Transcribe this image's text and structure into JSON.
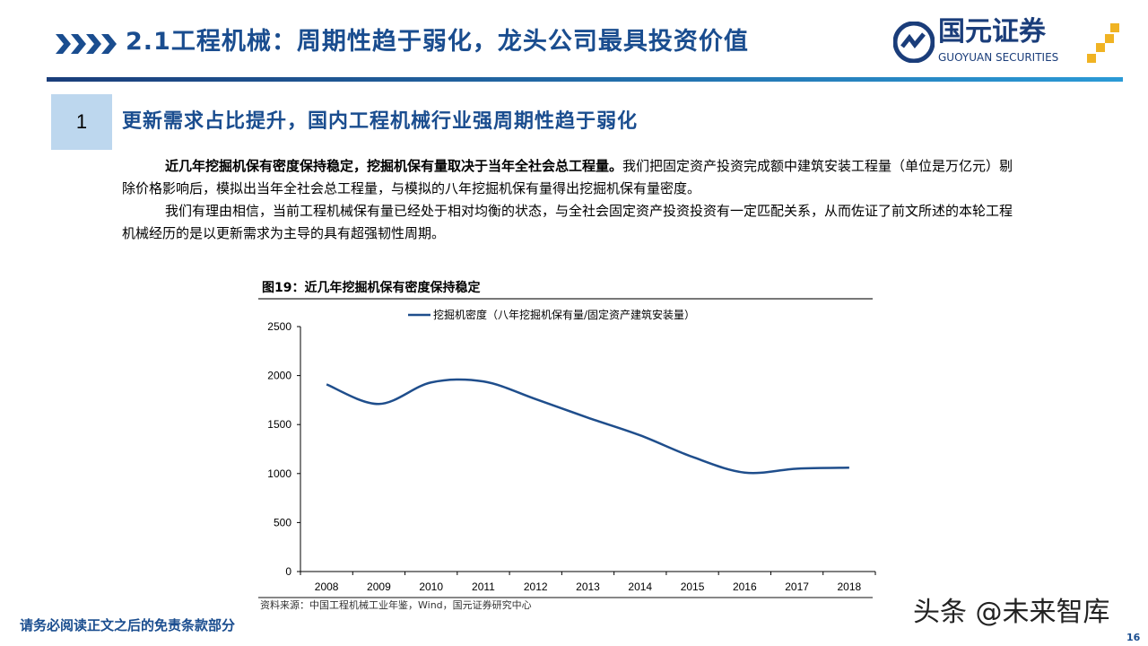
{
  "header": {
    "title": "2.1工程机械：周期性趋于弱化，龙头公司最具投资价值",
    "logo_cn": "国元证券",
    "logo_en": "GUOYUAN SECURITIES"
  },
  "section": {
    "number": "1",
    "title": "更新需求占比提升，国内工程机械行业强周期性趋于弱化"
  },
  "body": {
    "p1_bold": "近几年挖掘机保有密度保持稳定，挖掘机保有量取决于当年全社会总工程量。",
    "p1_rest": "我们把固定资产投资完成额中建筑安装工程量（单位是万亿元）剔除价格影响后，模拟出当年全社会总工程量，与模拟的八年挖掘机保有量得出挖掘机保有量密度。",
    "p2": "我们有理由相信，当前工程机械保有量已经处于相对均衡的状态，与全社会固定资产投资投资有一定匹配关系，从而佐证了前文所述的本轮工程机械经历的是以更新需求为主导的具有超强韧性周期。"
  },
  "figure": {
    "title": "图19：近几年挖掘机保有密度保持稳定",
    "source": "资料来源：中国工程机械工业年鉴，Wind，国元证券研究中心"
  },
  "chart_data": {
    "type": "line",
    "title": "",
    "xlabel": "",
    "ylabel": "",
    "categories": [
      "2008",
      "2009",
      "2010",
      "2011",
      "2012",
      "2013",
      "2014",
      "2015",
      "2016",
      "2017",
      "2018"
    ],
    "series": [
      {
        "name": "挖掘机密度（八年挖掘机保有量/固定资产建筑安装量）",
        "values": [
          1910,
          1710,
          1930,
          1940,
          1760,
          1570,
          1390,
          1170,
          1010,
          1050,
          1060
        ]
      }
    ],
    "ylim": [
      0,
      2500
    ],
    "yticks": [
      0,
      500,
      1000,
      1500,
      2000,
      2500
    ],
    "grid": false,
    "legend": "top",
    "color": "#1f4e8c"
  },
  "footer": {
    "disclaimer": "请务必阅读正文之后的免责条款部分",
    "watermark": "头条 @未来智库",
    "page": "16"
  }
}
